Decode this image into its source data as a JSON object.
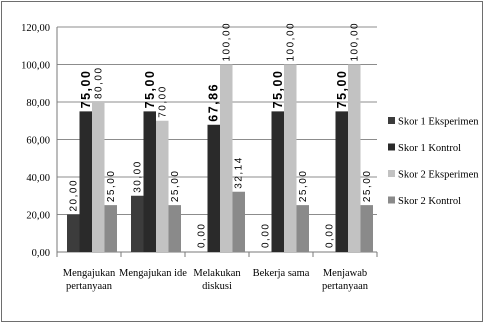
{
  "chart_data": {
    "type": "bar",
    "categories": [
      [
        "Mengajukan",
        "pertanyaan"
      ],
      [
        "Mengajukan ide"
      ],
      [
        "Melakukan",
        "diskusi"
      ],
      [
        "Bekerja sama"
      ],
      [
        "Menjawab",
        "pertanyaan"
      ]
    ],
    "series": [
      {
        "name": "Skor 1 Eksperimen",
        "color": "#3c3c3c",
        "values": [
          20,
          30,
          0,
          0,
          0
        ],
        "labels": [
          "20,00",
          "30,00",
          "0,00",
          "0,00",
          "0,00"
        ]
      },
      {
        "name": "Skor 1 Kontrol",
        "color": "#2a2a2a",
        "values": [
          75,
          75,
          67.86,
          75,
          75
        ],
        "labels": [
          "75,00",
          "75,00",
          "67,86",
          "75,00",
          "75,00"
        ]
      },
      {
        "name": "Skor 2 Eksperimen",
        "color": "#c2c2c2",
        "values": [
          80,
          70,
          100,
          100,
          100
        ],
        "labels": [
          "80,00",
          "70,00",
          "100,00",
          "100,00",
          "100,00"
        ]
      },
      {
        "name": "Skor 2 Kontrol",
        "color": "#8a8a8a",
        "values": [
          25,
          25,
          32.14,
          25,
          25
        ],
        "labels": [
          "25,00",
          "25,00",
          "32,14",
          "25,00",
          "25,00"
        ]
      }
    ],
    "yticks": [
      "0,00",
      "20,00",
      "40,00",
      "60,00",
      "80,00",
      "100,00",
      "120,00"
    ],
    "ylim": [
      0,
      120
    ],
    "grid": true,
    "legend": "right"
  }
}
